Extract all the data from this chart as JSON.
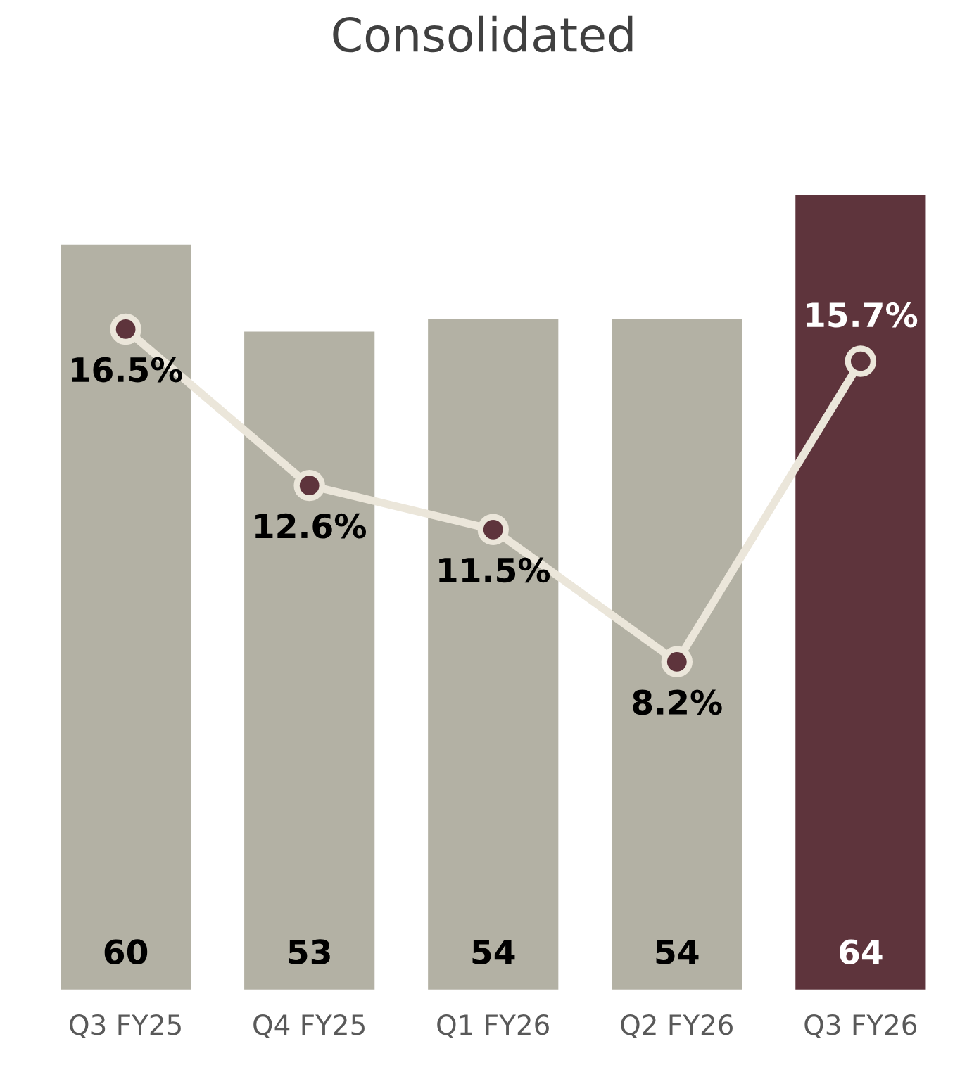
{
  "chart_data": {
    "type": "bar",
    "title": "Consolidated",
    "categories": [
      "Q3 FY25",
      "Q4 FY25",
      "Q1 FY26",
      "Q2 FY26",
      "Q3 FY26"
    ],
    "series": [
      {
        "colors": [
          "#b3b1a4",
          "#b3b1a4",
          "#b3b1a4",
          "#b3b1a4",
          "#5e343c"
        ],
        "values": [
          60,
          53,
          54,
          54,
          64
        ],
        "value_labels": [
          "60",
          "53",
          "54",
          "54",
          "64"
        ]
      },
      {
        "type": "line",
        "axis": "y2",
        "color": "#ebe6da",
        "values": [
          16.5,
          12.6,
          11.5,
          8.2,
          15.7
        ],
        "value_labels": [
          "16.5%",
          "12.6%",
          "11.5%",
          "8.2%",
          "15.7%"
        ]
      }
    ],
    "tick_labels": "x",
    "grid": false,
    "legend": false,
    "marker": "circle",
    "line_style": "solid"
  }
}
